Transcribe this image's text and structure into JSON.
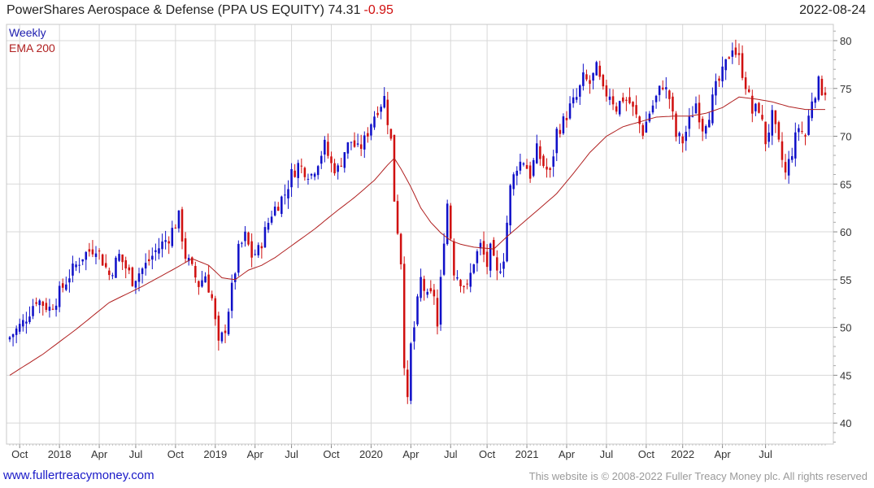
{
  "header": {
    "title": "PowerShares Aerospace & Defense (PPA US EQUITY)",
    "last": "74.31",
    "change": "-0.95",
    "date": "2022-08-24"
  },
  "footer": {
    "site": "www.fullertreacymoney.com",
    "copyright": "This website is © 2008-2022 Fuller Treacy Money plc. All rights reserved"
  },
  "colors": {
    "up": "#1010c8",
    "down": "#d01010",
    "ema": "#b02020",
    "grid": "#d8d8d8"
  },
  "chart_data": {
    "type": "candlestick",
    "period": "Weekly",
    "legend": [
      "Weekly",
      "EMA 200"
    ],
    "legend_colors": [
      "#2020b0",
      "#b02020"
    ],
    "y_ticks": [
      40,
      45,
      50,
      55,
      60,
      65,
      70,
      75,
      80
    ],
    "ylim": [
      37.8,
      81.7
    ],
    "x_labels": [
      {
        "label": "Oct",
        "week": 3
      },
      {
        "label": "2018",
        "week": 15
      },
      {
        "label": "Apr",
        "week": 27
      },
      {
        "label": "Jul",
        "week": 38
      },
      {
        "label": "Oct",
        "week": 50
      },
      {
        "label": "2019",
        "week": 62
      },
      {
        "label": "Apr",
        "week": 74
      },
      {
        "label": "Jul",
        "week": 85
      },
      {
        "label": "Oct",
        "week": 97
      },
      {
        "label": "2020",
        "week": 109
      },
      {
        "label": "Apr",
        "week": 121
      },
      {
        "label": "Jul",
        "week": 133
      },
      {
        "label": "Oct",
        "week": 144
      },
      {
        "label": "2021",
        "week": 156
      },
      {
        "label": "Apr",
        "week": 168
      },
      {
        "label": "Jul",
        "week": 180
      },
      {
        "label": "Oct",
        "week": 192
      },
      {
        "label": "2022",
        "week": 203
      },
      {
        "label": "Apr",
        "week": 215
      },
      {
        "label": "Jul",
        "week": 228
      }
    ],
    "close_path": [
      [
        0,
        49.0
      ],
      [
        4,
        50.5
      ],
      [
        8,
        53.0
      ],
      [
        12,
        52.0
      ],
      [
        14,
        53.0
      ],
      [
        18,
        55.5
      ],
      [
        22,
        57.5
      ],
      [
        26,
        58.5
      ],
      [
        30,
        55.5
      ],
      [
        33,
        57.5
      ],
      [
        37,
        55.0
      ],
      [
        41,
        56.5
      ],
      [
        44,
        58.0
      ],
      [
        48,
        59.5
      ],
      [
        51,
        61.5
      ],
      [
        53,
        57.5
      ],
      [
        55,
        56.0
      ],
      [
        57,
        54.5
      ],
      [
        59,
        55.5
      ],
      [
        61,
        53.0
      ],
      [
        63,
        48.0
      ],
      [
        65,
        50.0
      ],
      [
        67,
        54.0
      ],
      [
        69,
        58.0
      ],
      [
        71,
        59.5
      ],
      [
        73,
        57.5
      ],
      [
        75,
        58.0
      ],
      [
        77,
        60.0
      ],
      [
        79,
        62.0
      ],
      [
        81,
        63.0
      ],
      [
        83,
        64.0
      ],
      [
        85,
        66.0
      ],
      [
        87,
        67.0
      ],
      [
        89,
        66.5
      ],
      [
        91,
        66.0
      ],
      [
        93,
        67.5
      ],
      [
        95,
        69.0
      ],
      [
        97,
        67.0
      ],
      [
        99,
        66.5
      ],
      [
        101,
        68.5
      ],
      [
        103,
        69.5
      ],
      [
        105,
        68.5
      ],
      [
        107,
        69.5
      ],
      [
        109,
        71.5
      ],
      [
        111,
        73.0
      ],
      [
        113,
        74.0
      ],
      [
        115,
        69.5
      ],
      [
        116,
        63.5
      ],
      [
        118,
        57.0
      ],
      [
        119,
        46.5
      ],
      [
        120,
        42.0
      ],
      [
        121,
        48.0
      ],
      [
        122,
        50.0
      ],
      [
        124,
        55.0
      ],
      [
        126,
        53.0
      ],
      [
        128,
        53.5
      ],
      [
        129,
        50.0
      ],
      [
        131,
        59.5
      ],
      [
        132,
        63.0
      ],
      [
        134,
        56.0
      ],
      [
        136,
        55.0
      ],
      [
        138,
        54.0
      ],
      [
        140,
        57.0
      ],
      [
        142,
        58.5
      ],
      [
        144,
        56.5
      ],
      [
        145,
        58.0
      ],
      [
        147,
        55.5
      ],
      [
        149,
        57.5
      ],
      [
        150,
        61.0
      ],
      [
        151,
        64.5
      ],
      [
        153,
        67.0
      ],
      [
        155,
        67.5
      ],
      [
        157,
        66.0
      ],
      [
        159,
        68.5
      ],
      [
        161,
        67.0
      ],
      [
        163,
        66.0
      ],
      [
        165,
        70.5
      ],
      [
        167,
        71.5
      ],
      [
        169,
        73.0
      ],
      [
        171,
        74.0
      ],
      [
        173,
        76.0
      ],
      [
        175,
        75.5
      ],
      [
        177,
        77.0
      ],
      [
        179,
        74.5
      ],
      [
        181,
        74.5
      ],
      [
        183,
        73.0
      ],
      [
        185,
        74.0
      ],
      [
        187,
        73.5
      ],
      [
        189,
        72.0
      ],
      [
        191,
        70.5
      ],
      [
        193,
        72.5
      ],
      [
        195,
        74.0
      ],
      [
        197,
        75.5
      ],
      [
        199,
        74.0
      ],
      [
        201,
        70.0
      ],
      [
        203,
        69.5
      ],
      [
        205,
        71.5
      ],
      [
        207,
        73.5
      ],
      [
        209,
        71.0
      ],
      [
        211,
        72.5
      ],
      [
        213,
        75.0
      ],
      [
        215,
        76.5
      ],
      [
        217,
        78.5
      ],
      [
        218,
        79.5
      ],
      [
        220,
        78.0
      ],
      [
        222,
        75.5
      ],
      [
        224,
        72.5
      ],
      [
        226,
        73.0
      ],
      [
        228,
        69.5
      ],
      [
        230,
        72.0
      ],
      [
        232,
        69.0
      ],
      [
        234,
        66.0
      ],
      [
        236,
        68.5
      ],
      [
        238,
        71.0
      ],
      [
        240,
        70.0
      ],
      [
        242,
        74.0
      ],
      [
        244,
        75.5
      ],
      [
        246,
        74.3
      ]
    ],
    "ema_200": [
      [
        0,
        45.0
      ],
      [
        10,
        47.2
      ],
      [
        20,
        49.8
      ],
      [
        30,
        52.6
      ],
      [
        40,
        54.3
      ],
      [
        50,
        56.2
      ],
      [
        55,
        57.2
      ],
      [
        60,
        56.5
      ],
      [
        64,
        55.2
      ],
      [
        68,
        55.0
      ],
      [
        72,
        56.0
      ],
      [
        76,
        56.5
      ],
      [
        80,
        57.3
      ],
      [
        86,
        58.8
      ],
      [
        92,
        60.3
      ],
      [
        98,
        62.0
      ],
      [
        104,
        63.6
      ],
      [
        110,
        65.4
      ],
      [
        114,
        67.0
      ],
      [
        116,
        67.7
      ],
      [
        118,
        66.6
      ],
      [
        121,
        64.7
      ],
      [
        124,
        62.5
      ],
      [
        127,
        61.0
      ],
      [
        130,
        59.9
      ],
      [
        133,
        59.1
      ],
      [
        136,
        58.7
      ],
      [
        140,
        58.4
      ],
      [
        143,
        58.3
      ],
      [
        146,
        58.2
      ],
      [
        150,
        59.5
      ],
      [
        155,
        61.0
      ],
      [
        160,
        62.5
      ],
      [
        165,
        64.0
      ],
      [
        170,
        66.1
      ],
      [
        175,
        68.3
      ],
      [
        180,
        70.0
      ],
      [
        185,
        71.0
      ],
      [
        190,
        71.5
      ],
      [
        195,
        72.0
      ],
      [
        200,
        72.1
      ],
      [
        205,
        72.1
      ],
      [
        210,
        72.4
      ],
      [
        215,
        73.0
      ],
      [
        220,
        74.1
      ],
      [
        225,
        73.9
      ],
      [
        230,
        73.6
      ],
      [
        235,
        73.1
      ],
      [
        240,
        72.8
      ],
      [
        246,
        72.8
      ]
    ]
  }
}
